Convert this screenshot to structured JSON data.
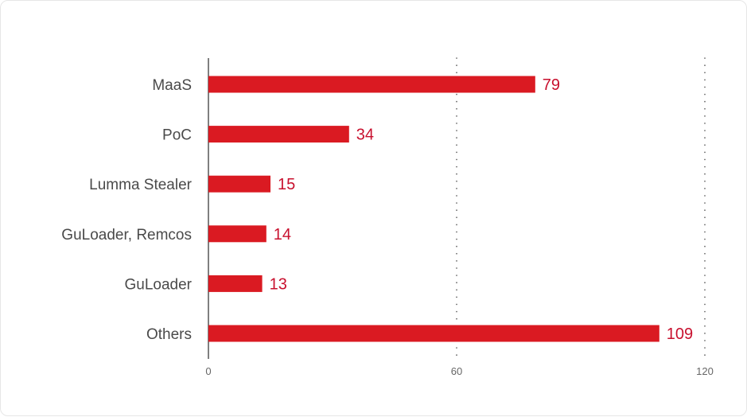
{
  "chart_data": {
    "type": "bar",
    "orientation": "horizontal",
    "categories": [
      "MaaS",
      "PoC",
      "Lumma Stealer",
      "GuLoader, Remcos",
      "GuLoader",
      "Others"
    ],
    "values": [
      79,
      34,
      15,
      14,
      13,
      109
    ],
    "xlim": [
      0,
      120
    ],
    "xticks": [
      0,
      60,
      120
    ],
    "grid": "vertical-dotted",
    "legend": "none",
    "title": "",
    "xlabel": "",
    "ylabel": ""
  },
  "colors": {
    "bar": "#da1a22",
    "value_label": "#c8102e",
    "axis": "#555555",
    "grid": "#555555"
  }
}
